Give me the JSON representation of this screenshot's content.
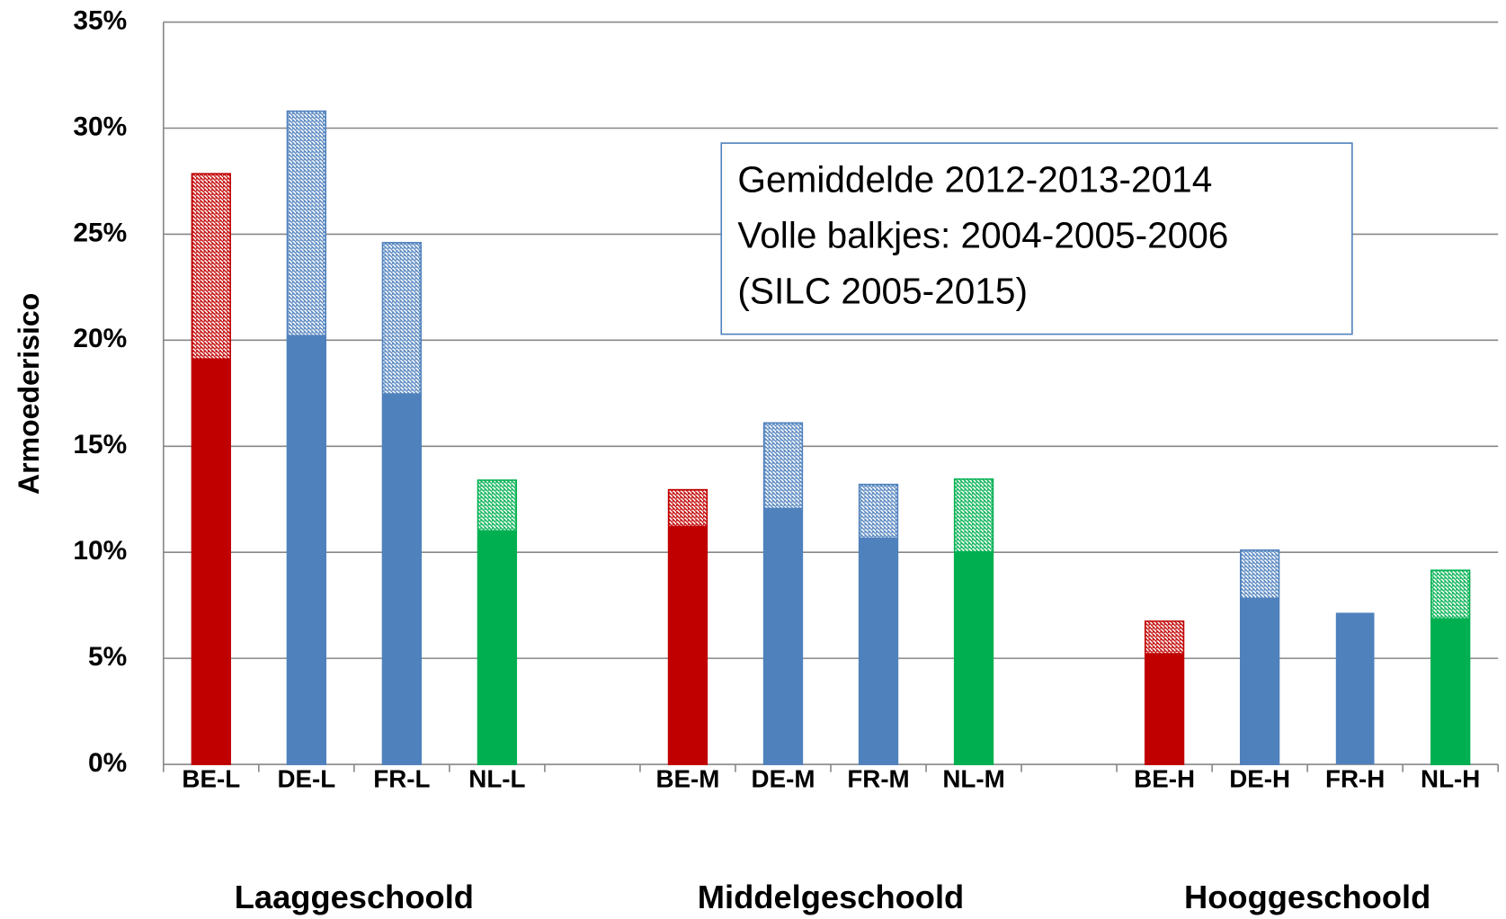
{
  "chart_data": {
    "type": "bar",
    "y_label": "Armoederisico",
    "annotation": [
      "Gemiddelde 2012-2013-2014",
      "Volle balkjes: 2004-2005-2006",
      "(SILC 2005-2015)"
    ],
    "categories": [
      "BE-L",
      "DE-L",
      "FR-L",
      "NL-L",
      null,
      "BE-M",
      "DE-M",
      "FR-M",
      "NL-M",
      null,
      "BE-H",
      "DE-H",
      "FR-H",
      "NL-H"
    ],
    "colors": [
      "#c00000",
      "#4f81bd",
      "#4f81bd",
      "#00b050",
      null,
      "#c00000",
      "#4f81bd",
      "#4f81bd",
      "#00b050",
      null,
      "#c00000",
      "#4f81bd",
      "#4f81bd",
      "#00b050"
    ],
    "groups": [
      {
        "label": "Laaggeschoold",
        "start": 0,
        "end": 3
      },
      {
        "label": "Middelgeschoold",
        "start": 5,
        "end": 8
      },
      {
        "label": "Hooggeschoold",
        "start": 10,
        "end": 13
      }
    ],
    "series": [
      {
        "style": "hatched",
        "values": [
          27.85,
          30.8,
          24.6,
          13.4,
          null,
          12.95,
          16.1,
          13.2,
          13.45,
          null,
          6.75,
          10.1,
          0,
          9.15
        ]
      },
      {
        "style": "solid",
        "values": [
          19.15,
          20.25,
          17.5,
          11.05,
          null,
          11.25,
          12.1,
          10.7,
          10.05,
          null,
          5.25,
          7.85,
          7.15,
          6.9
        ]
      }
    ],
    "ylim": [
      0,
      35
    ],
    "yticks": [
      {
        "value": 0,
        "label": "0%"
      },
      {
        "value": 5,
        "label": "5%"
      },
      {
        "value": 10,
        "label": "10%"
      },
      {
        "value": 15,
        "label": "15%"
      },
      {
        "value": 20,
        "label": "20%"
      },
      {
        "value": 25,
        "label": "25%"
      },
      {
        "value": 30,
        "label": "30%"
      },
      {
        "value": 35,
        "label": "35%"
      }
    ],
    "grid": true
  }
}
